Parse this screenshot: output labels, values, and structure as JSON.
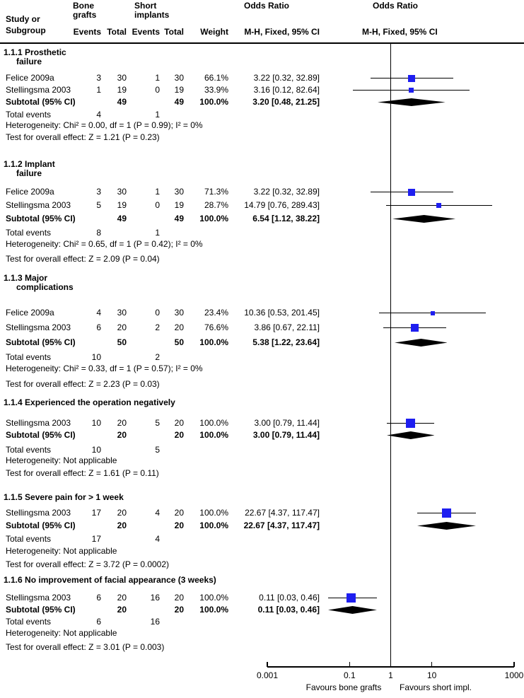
{
  "header": {
    "study_col_lines": [
      "Study or",
      "Subgroup"
    ],
    "group1_lines": [
      "Bone",
      "grafts"
    ],
    "group2_lines": [
      "Short",
      "implants"
    ],
    "events_label": "Events",
    "total_label": "Total",
    "weight_label": "Weight",
    "or_label": "Odds Ratio",
    "method_label": "M-H, Fixed, 95% CI"
  },
  "chart_data": {
    "type": "forest",
    "outcome_measure": "Odds Ratio",
    "method": "M-H, Fixed, 95% CI",
    "x_axis": {
      "scale": "log",
      "min": 0.001,
      "max": 1000,
      "tick_values": [
        0.001,
        0.1,
        1,
        10,
        1000
      ],
      "tick_labels": [
        "0.001",
        "0.1",
        "1",
        "10",
        "1000"
      ]
    },
    "footer": {
      "favours_left": "Favours bone grafts",
      "favours_right": "Favours short impl."
    },
    "colors": {
      "marker": "#1e1ef0",
      "summary": "#000000"
    },
    "sections": [
      {
        "heading_lines": [
          "1.1.1 Prosthetic",
          "failure"
        ],
        "studies": [
          {
            "study": "Felice 2009a",
            "e1": "3",
            "t1": "30",
            "e2": "1",
            "t2": "30",
            "weight": "66.1%",
            "or_text": "3.22 [0.32, 32.89]",
            "or": 3.22,
            "low": 0.32,
            "high": 32.89,
            "weight_num": 66.1
          },
          {
            "study": "Stellingsma 2003",
            "e1": "1",
            "t1": "19",
            "e2": "0",
            "t2": "19",
            "weight": "33.9%",
            "or_text": "3.16 [0.12, 82.64]",
            "or": 3.16,
            "low": 0.12,
            "high": 82.64,
            "weight_num": 33.9
          }
        ],
        "subtotal": {
          "label": "Subtotal (95% CI)",
          "t1": "49",
          "t2": "49",
          "weight": "100.0%",
          "or_text": "3.20 [0.48, 21.25]",
          "or": 3.2,
          "low": 0.48,
          "high": 21.25
        },
        "total_events": {
          "label": "Total events",
          "v1": "4",
          "v2": "1"
        },
        "heterogeneity": "Heterogeneity: Chi² = 0.00, df = 1 (P = 0.99); I² = 0%",
        "test": "Test for overall effect: Z = 1.21 (P = 0.23)"
      },
      {
        "heading_lines": [
          "1.1.2 Implant",
          "failure"
        ],
        "studies": [
          {
            "study": "Felice 2009a",
            "e1": "3",
            "t1": "30",
            "e2": "1",
            "t2": "30",
            "weight": "71.3%",
            "or_text": "3.22 [0.32, 32.89]",
            "or": 3.22,
            "low": 0.32,
            "high": 32.89,
            "weight_num": 71.3
          },
          {
            "study": "Stellingsma 2003",
            "e1": "5",
            "t1": "19",
            "e2": "0",
            "t2": "19",
            "weight": "28.7%",
            "or_text": "14.79 [0.76, 289.43]",
            "or": 14.79,
            "low": 0.76,
            "high": 289.43,
            "weight_num": 28.7
          }
        ],
        "subtotal": {
          "label": "Subtotal (95% CI)",
          "t1": "49",
          "t2": "49",
          "weight": "100.0%",
          "or_text": "6.54 [1.12, 38.22]",
          "or": 6.54,
          "low": 1.12,
          "high": 38.22
        },
        "total_events": {
          "label": "Total events",
          "v1": "8",
          "v2": "1"
        },
        "heterogeneity": "Heterogeneity: Chi² = 0.65, df = 1 (P = 0.42); I² = 0%",
        "test": "Test for overall effect: Z = 2.09 (P = 0.04)"
      },
      {
        "heading_lines": [
          "1.1.3 Major",
          "complications"
        ],
        "studies": [
          {
            "study": "Felice 2009a",
            "e1": "4",
            "t1": "30",
            "e2": "0",
            "t2": "30",
            "weight": "23.4%",
            "or_text": "10.36 [0.53, 201.45]",
            "or": 10.36,
            "low": 0.53,
            "high": 201.45,
            "weight_num": 23.4
          },
          {
            "study": "Stellingsma 2003",
            "e1": "6",
            "t1": "20",
            "e2": "2",
            "t2": "20",
            "weight": "76.6%",
            "or_text": "3.86 [0.67, 22.11]",
            "or": 3.86,
            "low": 0.67,
            "high": 22.11,
            "weight_num": 76.6
          }
        ],
        "subtotal": {
          "label": "Subtotal (95% CI)",
          "t1": "50",
          "t2": "50",
          "weight": "100.0%",
          "or_text": "5.38 [1.22, 23.64]",
          "or": 5.38,
          "low": 1.22,
          "high": 23.64
        },
        "total_events": {
          "label": "Total events",
          "v1": "10",
          "v2": "2"
        },
        "heterogeneity": "Heterogeneity: Chi² = 0.33, df = 1 (P = 0.57); I² = 0%",
        "test": "Test for overall effect: Z = 2.23 (P = 0.03)"
      },
      {
        "heading_lines": [
          "1.1.4 Experienced the operation negatively"
        ],
        "studies": [
          {
            "study": "Stellingsma 2003",
            "e1": "10",
            "t1": "20",
            "e2": "5",
            "t2": "20",
            "weight": "100.0%",
            "or_text": "3.00 [0.79, 11.44]",
            "or": 3.0,
            "low": 0.79,
            "high": 11.44,
            "weight_num": 100
          }
        ],
        "subtotal": {
          "label": "Subtotal (95% CI)",
          "t1": "20",
          "t2": "20",
          "weight": "100.0%",
          "or_text": "3.00 [0.79, 11.44]",
          "or": 3.0,
          "low": 0.79,
          "high": 11.44
        },
        "total_events": {
          "label": "Total events",
          "v1": "10",
          "v2": "5"
        },
        "heterogeneity": "Heterogeneity: Not applicable",
        "test": "Test for overall effect: Z = 1.61 (P = 0.11)"
      },
      {
        "heading_lines": [
          "1.1.5 Severe pain for > 1 week"
        ],
        "studies": [
          {
            "study": "Stellingsma 2003",
            "e1": "17",
            "t1": "20",
            "e2": "4",
            "t2": "20",
            "weight": "100.0%",
            "or_text": "22.67 [4.37, 117.47]",
            "or": 22.67,
            "low": 4.37,
            "high": 117.47,
            "weight_num": 100
          }
        ],
        "subtotal": {
          "label": "Subtotal (95% CI)",
          "t1": "20",
          "t2": "20",
          "weight": "100.0%",
          "or_text": "22.67 [4.37, 117.47]",
          "or": 22.67,
          "low": 4.37,
          "high": 117.47
        },
        "total_events": {
          "label": "Total events",
          "v1": "17",
          "v2": "4"
        },
        "heterogeneity": "Heterogeneity: Not applicable",
        "test": "Test for overall effect: Z = 3.72 (P = 0.0002)"
      },
      {
        "heading_lines": [
          "1.1.6 No improvement of facial appearance (3 weeks)"
        ],
        "studies": [
          {
            "study": "Stellingsma 2003",
            "e1": "6",
            "t1": "20",
            "e2": "16",
            "t2": "20",
            "weight": "100.0%",
            "or_text": "0.11 [0.03, 0.46]",
            "or": 0.11,
            "low": 0.03,
            "high": 0.46,
            "weight_num": 100
          }
        ],
        "subtotal": {
          "label": "Subtotal (95% CI)",
          "t1": "20",
          "t2": "20",
          "weight": "100.0%",
          "or_text": "0.11 [0.03, 0.46]",
          "or": 0.11,
          "low": 0.03,
          "high": 0.46
        },
        "total_events": {
          "label": "Total events",
          "v1": "6",
          "v2": "16"
        },
        "heterogeneity": "Heterogeneity: Not applicable",
        "test": "Test for overall effect: Z = 3.01 (P = 0.003)"
      }
    ]
  }
}
